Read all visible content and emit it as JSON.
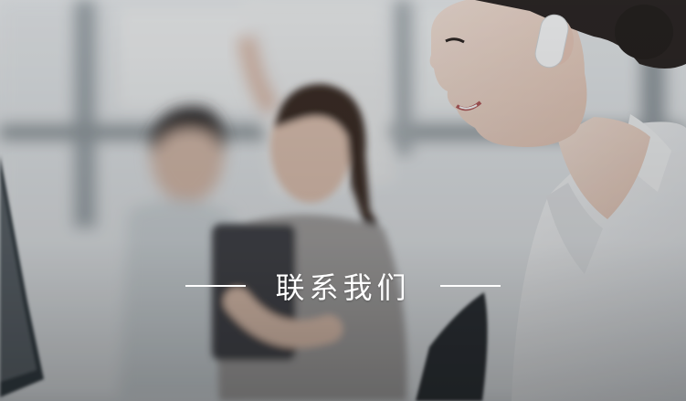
{
  "banner": {
    "title": "联系我们",
    "photo_subject": "customer-service-agent-with-headset",
    "colors": {
      "text": "#ffffff",
      "overlay": "#1f2a30",
      "shirt": "#f4f4f4",
      "hair": "#2c2623"
    }
  }
}
